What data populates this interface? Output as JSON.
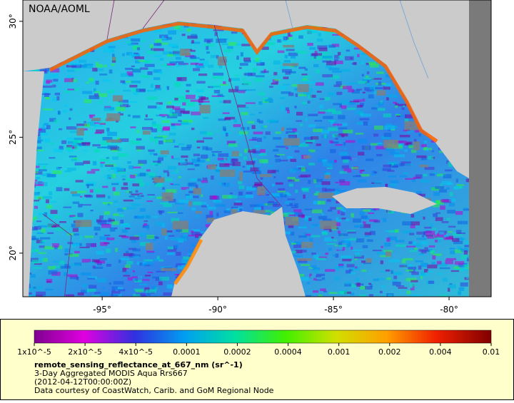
{
  "map": {
    "credit": "NOAA/AOML",
    "xlim": [
      -98.43,
      -78.18
    ],
    "ylim": [
      18.12,
      30.92
    ],
    "lon_ticks": [
      {
        "value": -95,
        "label": "-95°"
      },
      {
        "value": -90,
        "label": "-90°"
      },
      {
        "value": -85,
        "label": "-85°"
      },
      {
        "value": -80,
        "label": "-80°"
      }
    ],
    "lat_ticks": [
      {
        "value": 20,
        "label": "20°"
      },
      {
        "value": 25,
        "label": "25°"
      },
      {
        "value": 30,
        "label": "30°"
      }
    ]
  },
  "legend": {
    "colorbar_ticks": [
      {
        "value": 1e-05,
        "label": "1x10^-5"
      },
      {
        "value": 2e-05,
        "label": "2x10^-5"
      },
      {
        "value": 4e-05,
        "label": "4x10^-5"
      },
      0.0001,
      0.0002,
      0.0004,
      0.001,
      0.002,
      0.004,
      0.01
    ],
    "variable": "remote_sensing_reflectance_at_667_nm (sr^-1)",
    "lines": [
      "3-Day Aggregated MODIS Aqua Rrs667",
      "(2012-04-12T00:00:00Z)",
      "Data courtesy of CoastWatch, Carib. and GoM Regional Node"
    ]
  }
}
